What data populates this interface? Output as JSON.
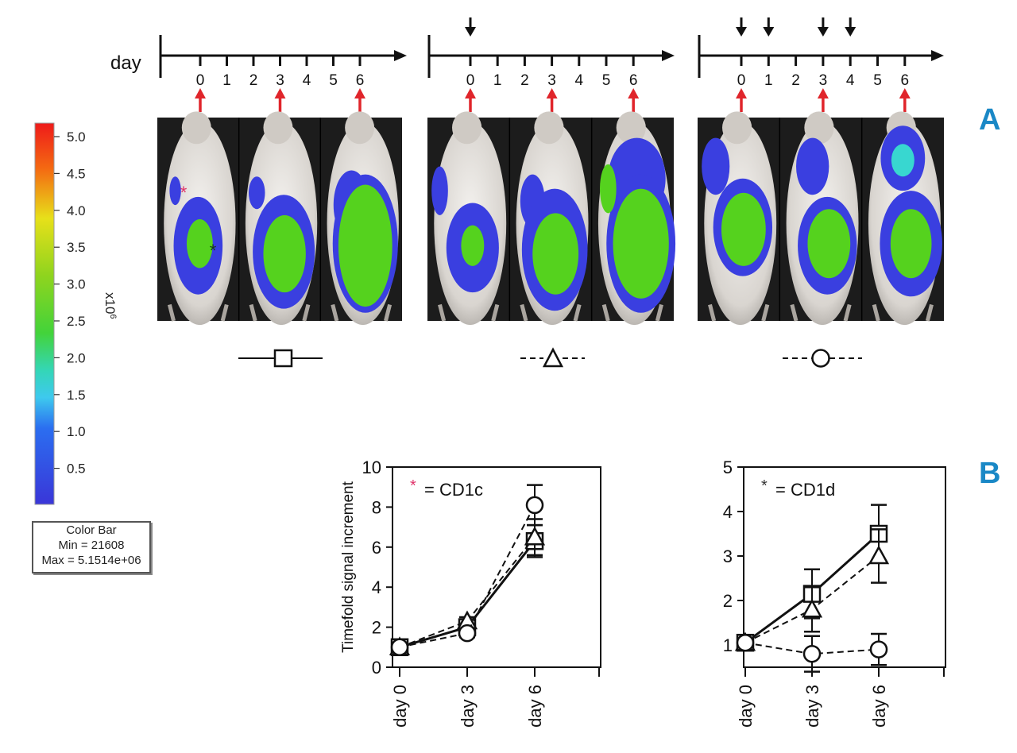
{
  "panel_labels": {
    "a": "A",
    "b": "B"
  },
  "timeline": {
    "day_label": "day",
    "ticks": [
      "0",
      "1",
      "2",
      "3",
      "4",
      "5",
      "6"
    ],
    "groups": [
      {
        "treatment_days": [],
        "imaging_days": [
          0,
          3,
          6
        ]
      },
      {
        "treatment_days": [
          0
        ],
        "imaging_days": [
          0,
          3,
          6
        ]
      },
      {
        "treatment_days": [
          0,
          1,
          3,
          4
        ],
        "imaging_days": [
          0,
          3,
          6
        ]
      }
    ]
  },
  "colorbar": {
    "ticks": [
      "5.0",
      "4.5",
      "4.0",
      "3.5",
      "3.0",
      "2.5",
      "2.0",
      "1.5",
      "1.0",
      "0.5"
    ],
    "unit_base": "x10",
    "unit_exp": "6",
    "info_title": "Color Bar",
    "info_min": "Min = 21608",
    "info_max": "Max = 5.1514e+06"
  },
  "chart_data": [
    {
      "type": "line",
      "ylabel": "Timefold signal increment",
      "xlabel": "",
      "categories": [
        "day 0",
        "day 3",
        "day 6"
      ],
      "ylim": [
        0,
        10
      ],
      "yticks": [
        "0",
        "2",
        "4",
        "6",
        "8",
        "10"
      ],
      "annotation": "= CD1c",
      "annotation_marker": "*",
      "series": [
        {
          "marker": "square",
          "line": "solid",
          "values": [
            1.0,
            2.0,
            6.3
          ],
          "errors": [
            0.1,
            0.2,
            0.8
          ]
        },
        {
          "marker": "triangle",
          "line": "dashed",
          "values": [
            1.0,
            2.3,
            6.5
          ],
          "errors": [
            0.1,
            0.2,
            0.9
          ]
        },
        {
          "marker": "circle",
          "line": "dashed",
          "values": [
            1.0,
            1.7,
            8.1
          ],
          "errors": [
            0.1,
            0.2,
            1.0
          ]
        }
      ]
    },
    {
      "type": "line",
      "ylabel": "",
      "xlabel": "",
      "categories": [
        "day 0",
        "day 3",
        "day 6"
      ],
      "ylim": [
        0.5,
        5
      ],
      "yticks": [
        "1",
        "2",
        "3",
        "4",
        "5"
      ],
      "annotation": "= CD1d",
      "annotation_marker": "*",
      "series": [
        {
          "marker": "square",
          "line": "solid",
          "values": [
            1.05,
            2.15,
            3.5
          ],
          "errors": [
            0.05,
            0.55,
            0.65
          ]
        },
        {
          "marker": "triangle",
          "line": "dashed",
          "values": [
            1.05,
            1.8,
            3.0
          ],
          "errors": [
            0.05,
            0.5,
            0.6
          ]
        },
        {
          "marker": "circle",
          "line": "dashed",
          "values": [
            1.05,
            0.8,
            0.9
          ],
          "errors": [
            0.05,
            0.4,
            0.35
          ]
        }
      ]
    }
  ],
  "colors": {
    "imaging_arrow": "#e0252b",
    "treatment_arrow": "#111111",
    "panel_label": "#1a88c6",
    "bioluminescence_low": "#3a3fe0",
    "bioluminescence_high": "#55d21e",
    "photo_background": "#1c1c1c",
    "cd1c_marker": "#e0336a",
    "cd1d_marker": "#333333"
  }
}
